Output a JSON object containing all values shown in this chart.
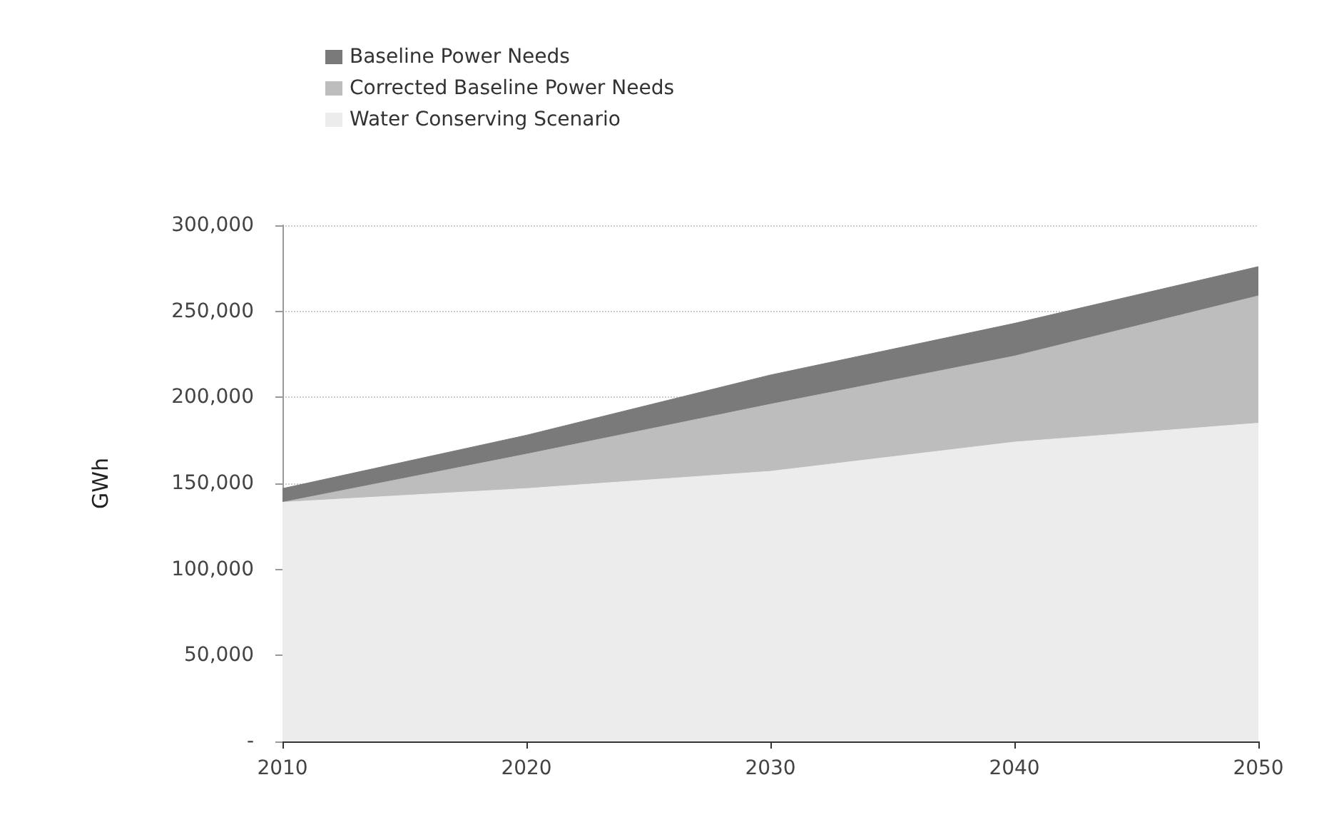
{
  "chart_data": {
    "type": "area",
    "stacked": true,
    "ylabel": "GWh",
    "x": [
      2010,
      2020,
      2030,
      2040,
      2050
    ],
    "xlim": [
      2010,
      2050
    ],
    "xticks": [
      2010,
      2020,
      2030,
      2040,
      2050
    ],
    "ylim": [
      0,
      300000
    ],
    "yticks": [
      {
        "value": 0,
        "label": "-"
      },
      {
        "value": 50000,
        "label": "50,000"
      },
      {
        "value": 100000,
        "label": "100,000"
      },
      {
        "value": 150000,
        "label": "150,000"
      },
      {
        "value": 200000,
        "label": "200,000"
      },
      {
        "value": 250000,
        "label": "250,000"
      },
      {
        "value": 300000,
        "label": "300,000"
      }
    ],
    "grid": "y",
    "legend": "top left",
    "series": [
      {
        "name": "Water Conserving Scenario",
        "color": "#ececec",
        "values": [
          139000,
          147000,
          157000,
          174000,
          185000
        ]
      },
      {
        "name": "Corrected Baseline Power Needs",
        "color": "#bdbdbd",
        "values": [
          0,
          20000,
          39000,
          50000,
          74000
        ]
      },
      {
        "name": "Baseline Power Needs",
        "color": "#7a7a7a",
        "values": [
          8000,
          11000,
          17000,
          19000,
          17000
        ]
      }
    ]
  }
}
